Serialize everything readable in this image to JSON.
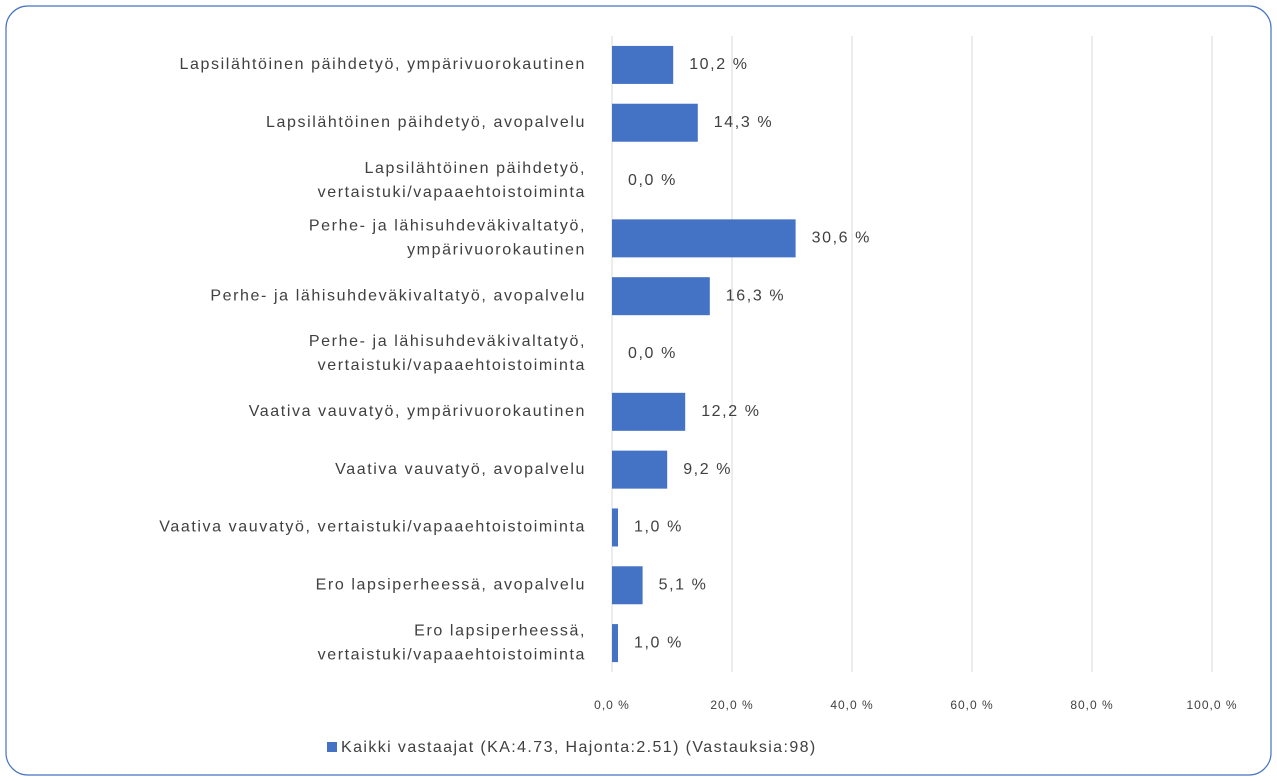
{
  "chart_data": {
    "type": "barh",
    "categories": [
      [
        "Lapsilähtöinen päihdetyö, ympärivuorokautinen"
      ],
      [
        "Lapsilähtöinen päihdetyö, avopalvelu"
      ],
      [
        "Lapsilähtöinen päihdetyö,",
        "vertaistuki/vapaaehtoistoiminta"
      ],
      [
        "Perhe- ja lähisuhdeväkivaltatyö,",
        "ympärivuorokautinen"
      ],
      [
        "Perhe- ja lähisuhdeväkivaltatyö, avopalvelu"
      ],
      [
        "Perhe- ja lähisuhdeväkivaltatyö,",
        "vertaistuki/vapaaehtoistoiminta"
      ],
      [
        "Vaativa vauvatyö, ympärivuorokautinen"
      ],
      [
        "Vaativa vauvatyö, avopalvelu"
      ],
      [
        "Vaativa vauvatyö, vertaistuki/vapaaehtoistoiminta"
      ],
      [
        "Ero lapsiperheessä, avopalvelu"
      ],
      [
        "Ero lapsiperheessä,",
        "vertaistuki/vapaaehtoistoiminta"
      ]
    ],
    "series": [
      {
        "name": "Kaikki vastaajat (KA:4.73, Hajonta:2.51) (Vastauksia:98)",
        "color": "#4472c4",
        "values": [
          10.2,
          14.3,
          0.0,
          30.6,
          16.3,
          0.0,
          12.2,
          9.2,
          1.0,
          5.1,
          1.0
        ],
        "value_labels": [
          "10,2 %",
          "14,3 %",
          "0,0 %",
          "30,6 %",
          "16,3 %",
          "0,0 %",
          "12,2 %",
          "9,2 %",
          "1,0 %",
          "5,1 %",
          "1,0 %"
        ]
      }
    ],
    "xlim": [
      0,
      100
    ],
    "xticks": [
      {
        "value": 0,
        "label": "0,0 %"
      },
      {
        "value": 20,
        "label": "20,0 %"
      },
      {
        "value": 40,
        "label": "40,0 %"
      },
      {
        "value": 60,
        "label": "60,0 %"
      },
      {
        "value": 80,
        "label": "80,0 %"
      },
      {
        "value": 100,
        "label": "100,0 %"
      }
    ],
    "grid": true
  }
}
